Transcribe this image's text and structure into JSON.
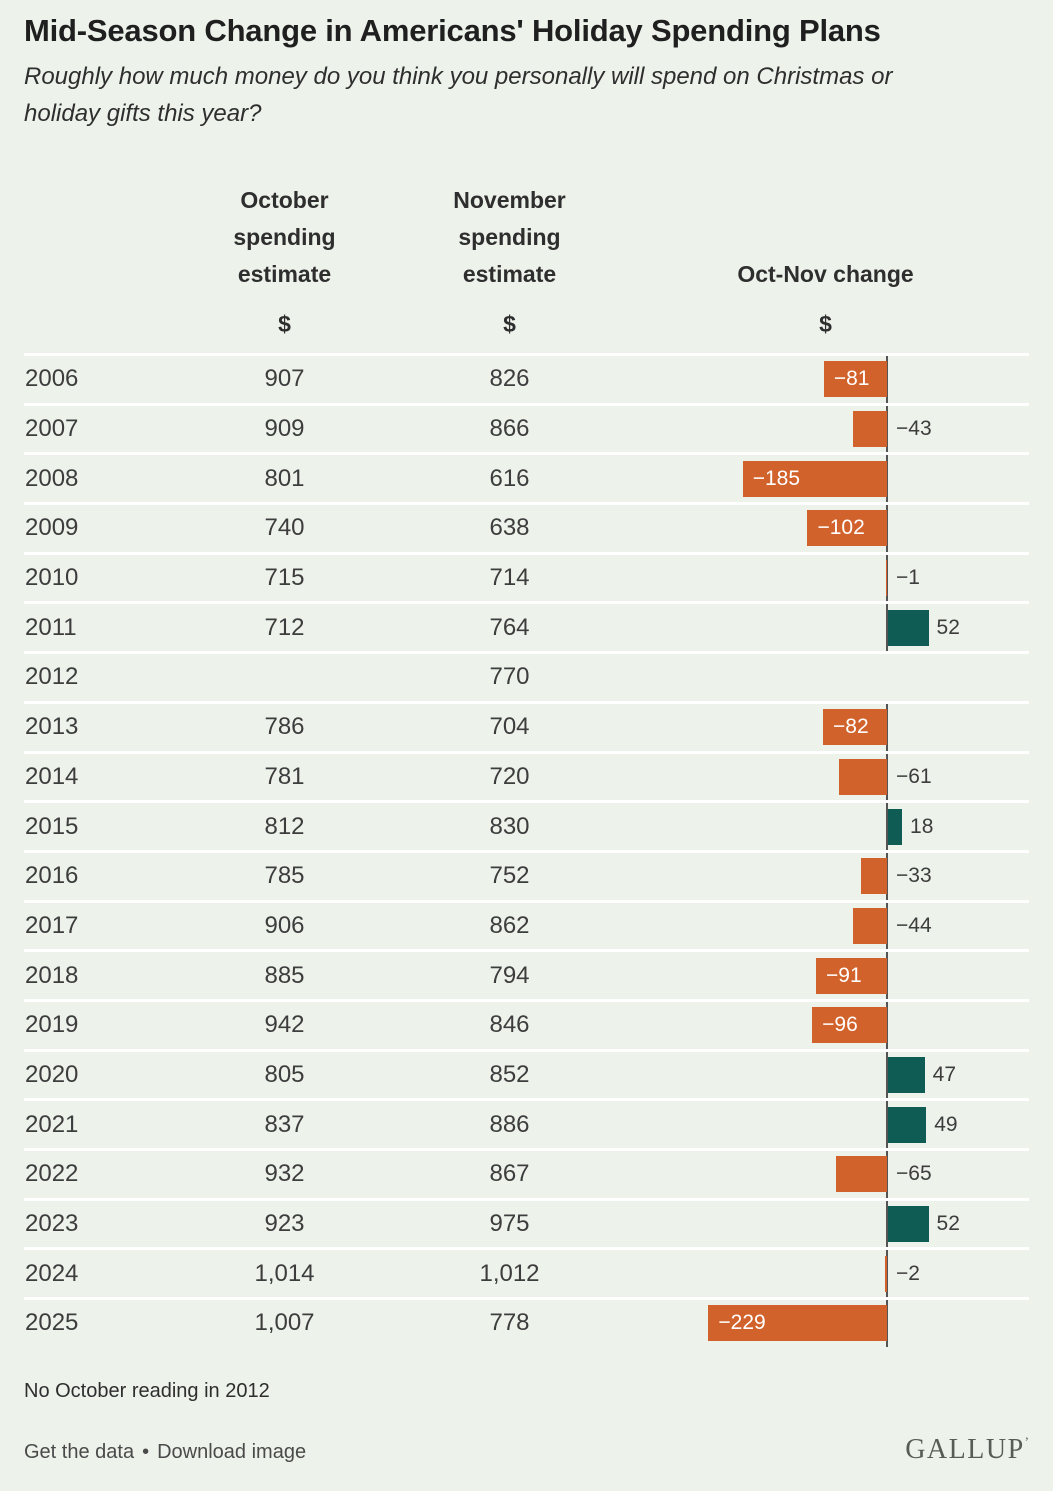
{
  "title": "Mid-Season Change in Americans' Holiday Spending Plans",
  "subtitle_lines": {
    "line1": "Roughly how much money do you think you personally will spend on Christmas or",
    "line2": "holiday gifts this year?"
  },
  "columns": {
    "october": "October spending estimate",
    "november": "November spending estimate",
    "change": "Oct-Nov change",
    "unit": "$"
  },
  "chart_data": {
    "type": "bar",
    "orientation": "horizontal",
    "title": "Mid-Season Change in Americans' Holiday Spending Plans",
    "subtitle": "Roughly how much money do you think you personally will spend on Christmas or holiday gifts this year?",
    "categories": [
      "2006",
      "2007",
      "2008",
      "2009",
      "2010",
      "2011",
      "2012",
      "2013",
      "2014",
      "2015",
      "2016",
      "2017",
      "2018",
      "2019",
      "2020",
      "2021",
      "2022",
      "2023",
      "2024",
      "2025"
    ],
    "series": [
      {
        "name": "October spending estimate ($)",
        "values": [
          907,
          909,
          801,
          740,
          715,
          712,
          null,
          786,
          781,
          812,
          785,
          906,
          885,
          942,
          805,
          837,
          932,
          923,
          1014,
          1007
        ]
      },
      {
        "name": "November spending estimate ($)",
        "values": [
          826,
          866,
          616,
          638,
          714,
          764,
          770,
          704,
          720,
          830,
          752,
          862,
          794,
          846,
          852,
          886,
          867,
          975,
          1012,
          778
        ]
      },
      {
        "name": "Oct-Nov change ($)",
        "values": [
          -81,
          -43,
          -185,
          -102,
          -1,
          52,
          null,
          -82,
          -61,
          18,
          -33,
          -44,
          -91,
          -96,
          47,
          49,
          -65,
          52,
          -2,
          -229
        ]
      }
    ],
    "bar_series_plotted": "Oct-Nov change ($)",
    "xlim": [
      -260,
      80
    ],
    "grid": false,
    "legend_position": "none",
    "annotations": [
      "No October reading in 2012"
    ]
  },
  "rows": [
    {
      "year": "2006",
      "oct": "907",
      "nov": "826",
      "change": -81,
      "change_label": "−81"
    },
    {
      "year": "2007",
      "oct": "909",
      "nov": "866",
      "change": -43,
      "change_label": "−43"
    },
    {
      "year": "2008",
      "oct": "801",
      "nov": "616",
      "change": -185,
      "change_label": "−185"
    },
    {
      "year": "2009",
      "oct": "740",
      "nov": "638",
      "change": -102,
      "change_label": "−102"
    },
    {
      "year": "2010",
      "oct": "715",
      "nov": "714",
      "change": -1,
      "change_label": "−1"
    },
    {
      "year": "2011",
      "oct": "712",
      "nov": "764",
      "change": 52,
      "change_label": "52"
    },
    {
      "year": "2012",
      "oct": "",
      "nov": "770",
      "change": null,
      "change_label": ""
    },
    {
      "year": "2013",
      "oct": "786",
      "nov": "704",
      "change": -82,
      "change_label": "−82"
    },
    {
      "year": "2014",
      "oct": "781",
      "nov": "720",
      "change": -61,
      "change_label": "−61"
    },
    {
      "year": "2015",
      "oct": "812",
      "nov": "830",
      "change": 18,
      "change_label": "18"
    },
    {
      "year": "2016",
      "oct": "785",
      "nov": "752",
      "change": -33,
      "change_label": "−33"
    },
    {
      "year": "2017",
      "oct": "906",
      "nov": "862",
      "change": -44,
      "change_label": "−44"
    },
    {
      "year": "2018",
      "oct": "885",
      "nov": "794",
      "change": -91,
      "change_label": "−91"
    },
    {
      "year": "2019",
      "oct": "942",
      "nov": "846",
      "change": -96,
      "change_label": "−96"
    },
    {
      "year": "2020",
      "oct": "805",
      "nov": "852",
      "change": 47,
      "change_label": "47"
    },
    {
      "year": "2021",
      "oct": "837",
      "nov": "886",
      "change": 49,
      "change_label": "49"
    },
    {
      "year": "2022",
      "oct": "932",
      "nov": "867",
      "change": -65,
      "change_label": "−65"
    },
    {
      "year": "2023",
      "oct": "923",
      "nov": "975",
      "change": 52,
      "change_label": "52"
    },
    {
      "year": "2024",
      "oct": "1,014",
      "nov": "1,012",
      "change": -2,
      "change_label": "−2"
    },
    {
      "year": "2025",
      "oct": "1,007",
      "nov": "778",
      "change": -229,
      "change_label": "−229"
    }
  ],
  "footnote": "No October reading in 2012",
  "footer": {
    "get_data_label": "Get the data",
    "separator": "•",
    "download_label": "Download image",
    "brand": "GALLUP",
    "brand_mark": "’"
  },
  "colors": {
    "background": "#EDF2EB",
    "negative": "#D2622B",
    "positive": "#0E5C54",
    "axis": "#545454",
    "separator": "#FFFFFF"
  }
}
